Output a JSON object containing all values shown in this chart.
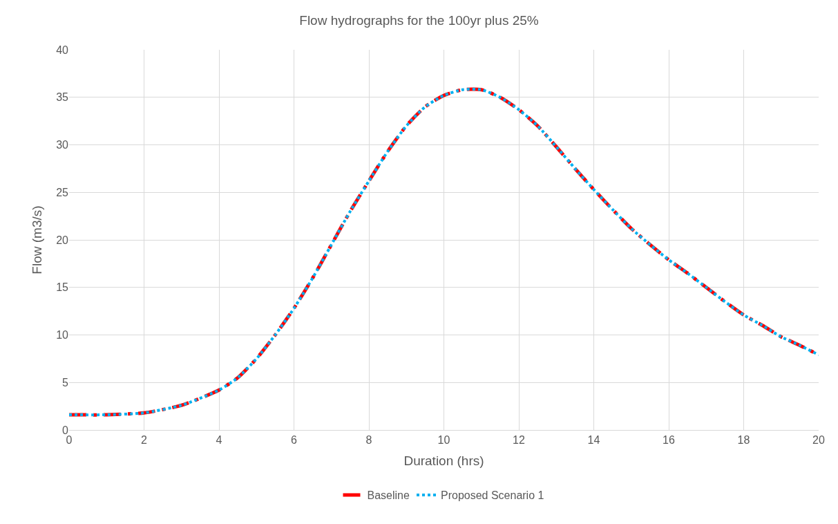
{
  "chart_data": {
    "type": "line",
    "title": "Flow hydrographs for the 100yr plus 25%",
    "xlabel": "Duration (hrs)",
    "ylabel": "Flow (m3/s)",
    "x": [
      0,
      1,
      2,
      3,
      4,
      4.5,
      5,
      5.5,
      6,
      6.5,
      7,
      7.5,
      8,
      8.5,
      9,
      9.5,
      10,
      10.5,
      11,
      11.5,
      12,
      12.5,
      13,
      13.5,
      14,
      14.5,
      15,
      15.5,
      16,
      16.5,
      17,
      17.5,
      18,
      18.5,
      19,
      19.5,
      20
    ],
    "series": [
      {
        "name": "Baseline",
        "color": "#ff0000",
        "line_style": "dashed",
        "values": [
          1.6,
          1.6,
          1.8,
          2.6,
          4.2,
          5.5,
          7.5,
          10,
          12.8,
          16,
          19.5,
          23,
          26.2,
          29.3,
          32,
          34,
          35.2,
          35.8,
          35.8,
          35,
          33.7,
          32,
          29.8,
          27.5,
          25.3,
          23.2,
          21.2,
          19.5,
          17.9,
          16.5,
          15,
          13.5,
          12.1,
          11,
          9.8,
          8.9,
          7.9
        ]
      },
      {
        "name": "Proposed Scenario 1",
        "color": "#00b0f0",
        "line_style": "dotted",
        "values": [
          1.6,
          1.6,
          1.8,
          2.6,
          4.2,
          5.5,
          7.5,
          10,
          12.8,
          16,
          19.5,
          23,
          26.2,
          29.3,
          32,
          34,
          35.2,
          35.8,
          35.8,
          35,
          33.7,
          32,
          29.8,
          27.5,
          25.3,
          23.2,
          21.2,
          19.5,
          17.9,
          16.5,
          15,
          13.5,
          12.1,
          11,
          9.8,
          8.9,
          7.9
        ]
      }
    ],
    "xlim": [
      0,
      20
    ],
    "xticks": [
      0,
      2,
      4,
      6,
      8,
      10,
      12,
      14,
      16,
      18,
      20
    ],
    "ylim": [
      0,
      40
    ],
    "yticks": [
      0,
      5,
      10,
      15,
      20,
      25,
      30,
      35,
      40
    ],
    "grid": true,
    "legend": "bottom"
  }
}
